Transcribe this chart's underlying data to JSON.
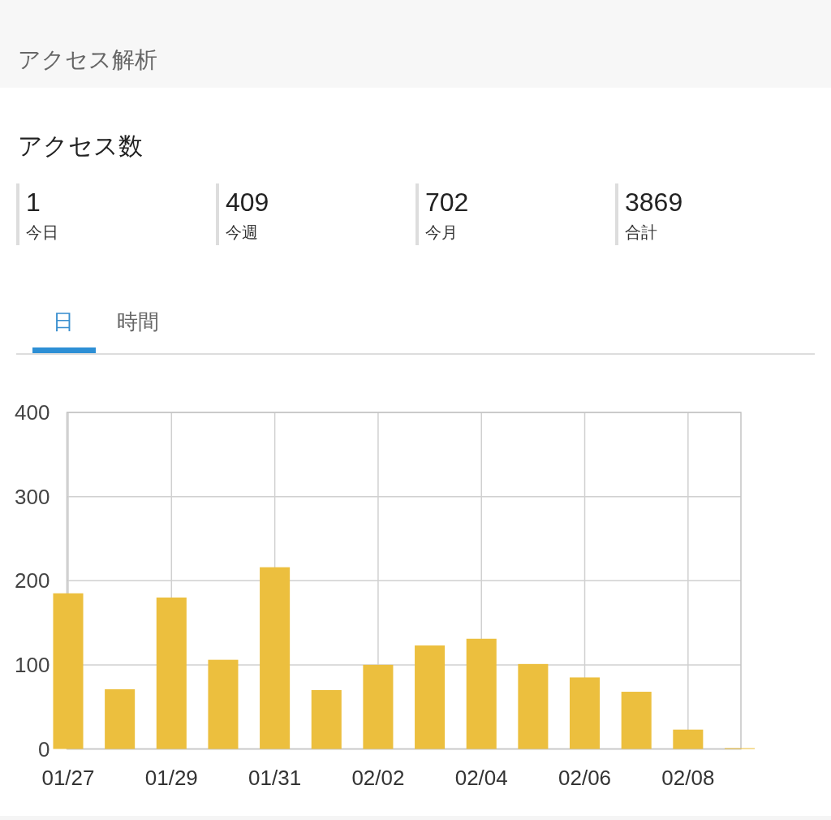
{
  "chart_data": [
    {
      "type": "other",
      "title": "アクセス解析",
      "subtitle": "アクセス数",
      "categories": [
        "今日",
        "今週",
        "今月",
        "合計"
      ],
      "values": [
        1,
        409,
        702,
        3869
      ],
      "data_labels": true
    },
    {
      "type": "bar",
      "annotations": [
        "日",
        "時間"
      ],
      "categories": [
        "01/27",
        null,
        "01/29",
        null,
        "01/31",
        null,
        "02/02",
        null,
        "02/04",
        null,
        "02/06",
        null,
        "02/08",
        null
      ],
      "values": [
        185,
        71,
        180,
        106,
        216,
        70,
        100,
        123,
        131,
        101,
        85,
        68,
        23,
        1
      ],
      "color": "#ecbf3e",
      "ylim": [
        0,
        400
      ],
      "yticks": [
        0,
        100,
        200,
        300,
        400
      ],
      "grid": true
    }
  ]
}
